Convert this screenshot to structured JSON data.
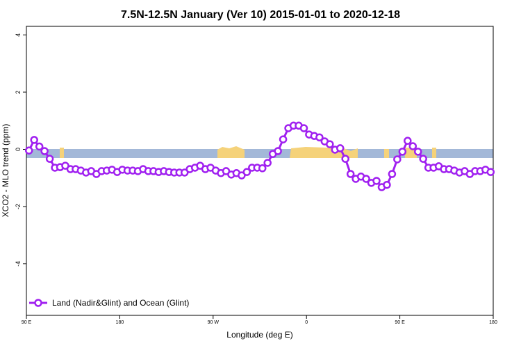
{
  "chart_data": {
    "type": "line",
    "title": "7.5N-12.5N January (Ver 10)   2015-01-01 to 2020-12-18",
    "x_label": "Longitude (deg E)",
    "y_label": "XCO2 - MLO trend (ppm)",
    "x": [
      92.5,
      97.5,
      102.5,
      107.5,
      112.5,
      117.5,
      122.5,
      127.5,
      132.5,
      137.5,
      142.5,
      147.5,
      152.5,
      157.5,
      162.5,
      167.5,
      172.5,
      177.5,
      182.5,
      187.5,
      192.5,
      197.5,
      202.5,
      207.5,
      212.5,
      217.5,
      222.5,
      227.5,
      232.5,
      237.5,
      242.5,
      247.5,
      252.5,
      257.5,
      262.5,
      267.5,
      272.5,
      277.5,
      282.5,
      287.5,
      292.5,
      297.5,
      302.5,
      307.5,
      312.5,
      317.5,
      322.5,
      327.5,
      332.5,
      337.5,
      342.5,
      347.5,
      352.5,
      357.5,
      362.5,
      367.5,
      372.5,
      377.5,
      382.5,
      387.5,
      392.5,
      397.5,
      402.5,
      407.5,
      412.5,
      417.5,
      422.5,
      427.5,
      432.5,
      437.5,
      442.5,
      447.5,
      452.5,
      457.5,
      462.5,
      467.5,
      472.5,
      477.5,
      482.5,
      487.5,
      492.5,
      497.5,
      502.5,
      507.5,
      512.5,
      517.5,
      522.5,
      527.5,
      532.5,
      537.5
    ],
    "series": [
      {
        "name": "Land (Nadir&Glint) and Ocean (Glint)",
        "color": "#a020f0",
        "values": [
          -0.04,
          0.33,
          0.1,
          -0.06,
          -0.33,
          -0.64,
          -0.62,
          -0.57,
          -0.69,
          -0.69,
          -0.74,
          -0.81,
          -0.76,
          -0.86,
          -0.76,
          -0.74,
          -0.71,
          -0.79,
          -0.71,
          -0.74,
          -0.74,
          -0.76,
          -0.69,
          -0.76,
          -0.76,
          -0.79,
          -0.76,
          -0.79,
          -0.81,
          -0.81,
          -0.81,
          -0.69,
          -0.64,
          -0.57,
          -0.69,
          -0.64,
          -0.74,
          -0.83,
          -0.76,
          -0.88,
          -0.83,
          -0.91,
          -0.79,
          -0.64,
          -0.64,
          -0.66,
          -0.47,
          -0.16,
          -0.06,
          0.35,
          0.74,
          0.83,
          0.83,
          0.74,
          0.52,
          0.47,
          0.42,
          0.28,
          0.18,
          -0.01,
          0.04,
          -0.33,
          -0.86,
          -1.03,
          -0.95,
          -1.03,
          -1.17,
          -1.1,
          -1.32,
          -1.24,
          -0.86,
          -0.35,
          -0.08,
          0.3,
          0.11,
          -0.08,
          -0.33,
          -0.64,
          -0.64,
          -0.59,
          -0.69,
          -0.69,
          -0.74,
          -0.81,
          -0.76,
          -0.86,
          -0.76,
          -0.76,
          -0.71,
          -0.79
        ]
      }
    ],
    "xlim": [
      90,
      540
    ],
    "xticks": [
      {
        "value": 90,
        "label": "90 E"
      },
      180,
      {
        "value": 270,
        "label": "90 W"
      },
      {
        "value": 360,
        "label": "0"
      },
      {
        "value": 450,
        "label": "90 E"
      },
      {
        "value": 540,
        "label": "180"
      }
    ],
    "ylim": [
      -5.8,
      4.3
    ],
    "yticks": [
      -4,
      -2,
      0,
      2,
      4
    ],
    "legend": "bottom-left"
  }
}
